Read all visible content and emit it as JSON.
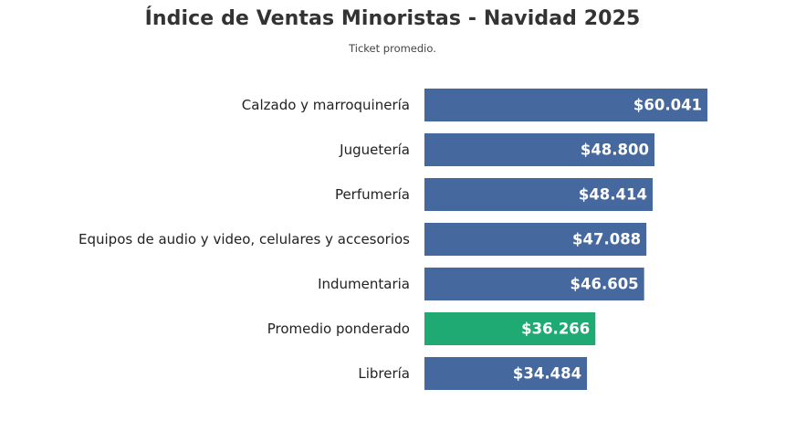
{
  "chart_data": {
    "type": "bar",
    "orientation": "horizontal",
    "title": "Índice de Ventas Minoristas - Navidad 2025",
    "subtitle": "Ticket promedio.",
    "xlabel": "",
    "ylabel": "",
    "grid": false,
    "legend": "none",
    "xlim": [
      0,
      61000
    ],
    "categories": [
      "Calzado y marroquinería",
      "Juguetería",
      "Perfumería",
      "Equipos de audio y video, celulares y accesorios",
      "Indumentaria",
      "Promedio ponderado",
      "Librería"
    ],
    "values": [
      60041,
      48800,
      48414,
      47088,
      46605,
      36266,
      34484
    ],
    "value_labels": [
      "$60.041",
      "$48.800",
      "$48.414",
      "$47.088",
      "$46.605",
      "$36.266",
      "$34.484"
    ],
    "colors": [
      "#45689e",
      "#45689e",
      "#45689e",
      "#45689e",
      "#45689e",
      "#1faa74",
      "#45689e"
    ]
  }
}
